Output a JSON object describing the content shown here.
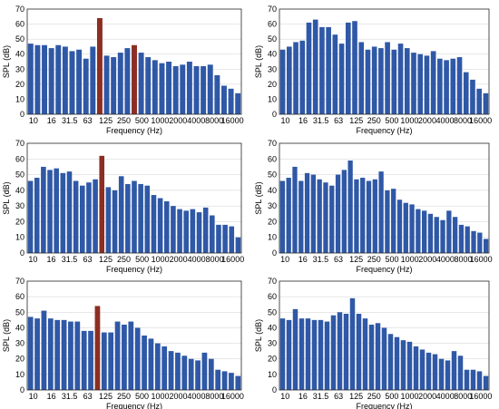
{
  "chart_data": [
    {
      "type": "bar",
      "xlabel": "Frequency (Hz)",
      "ylabel": "SPL (dB)",
      "ylim": [
        0,
        70
      ],
      "yticks": [
        0,
        10,
        20,
        30,
        40,
        50,
        60,
        70
      ],
      "xticklabels": [
        "10",
        "16",
        "31.5",
        "63",
        "125",
        "250",
        "500",
        "1000",
        "2000",
        "4000",
        "8000",
        "16000"
      ],
      "grid": true,
      "values": [
        47,
        46,
        46,
        44,
        46,
        45,
        42,
        43,
        37,
        45,
        64,
        39,
        38,
        41,
        44,
        46,
        41,
        38,
        36,
        34,
        35,
        32,
        33,
        35,
        32,
        32,
        33,
        26,
        19,
        17,
        14
      ],
      "highlight_indices": [
        10,
        15
      ]
    },
    {
      "type": "bar",
      "xlabel": "Frequency (Hz)",
      "ylabel": "SPL (dB)",
      "ylim": [
        0,
        70
      ],
      "yticks": [
        0,
        10,
        20,
        30,
        40,
        50,
        60,
        70
      ],
      "xticklabels": [
        "10",
        "16",
        "31.5",
        "63",
        "125",
        "250",
        "500",
        "1000",
        "2000",
        "4000",
        "8000",
        "16000"
      ],
      "grid": true,
      "values": [
        43,
        45,
        48,
        49,
        61,
        63,
        58,
        58,
        53,
        47,
        61,
        62,
        48,
        43,
        45,
        44,
        48,
        43,
        47,
        44,
        41,
        40,
        39,
        42,
        37,
        36,
        37,
        38,
        28,
        23,
        17,
        14
      ],
      "highlight_indices": []
    },
    {
      "type": "bar",
      "xlabel": "Frequency (Hz)",
      "ylabel": "SPL (dB)",
      "ylim": [
        0,
        70
      ],
      "yticks": [
        0,
        10,
        20,
        30,
        40,
        50,
        60,
        70
      ],
      "xticklabels": [
        "10",
        "16",
        "31.5",
        "63",
        "125",
        "250",
        "500",
        "1000",
        "2000",
        "4000",
        "8000",
        "16000"
      ],
      "grid": true,
      "values": [
        46,
        48,
        55,
        53,
        54,
        51,
        52,
        46,
        43,
        45,
        47,
        62,
        42,
        40,
        49,
        44,
        46,
        44,
        43,
        37,
        35,
        33,
        30,
        28,
        27,
        28,
        26,
        29,
        24,
        18,
        18,
        17,
        10
      ],
      "highlight_indices": [
        11
      ]
    },
    {
      "type": "bar",
      "xlabel": "Frequency (Hz)",
      "ylabel": "SPL (dB)",
      "ylim": [
        0,
        70
      ],
      "yticks": [
        0,
        10,
        20,
        30,
        40,
        50,
        60,
        70
      ],
      "xticklabels": [
        "10",
        "16",
        "31.5",
        "63",
        "125",
        "250",
        "500",
        "1000",
        "2000",
        "4000",
        "8000",
        "16000"
      ],
      "grid": true,
      "values": [
        46,
        48,
        55,
        46,
        51,
        50,
        47,
        45,
        43,
        50,
        53,
        59,
        47,
        48,
        46,
        47,
        52,
        40,
        41,
        34,
        32,
        31,
        28,
        27,
        25,
        23,
        21,
        27,
        23,
        18,
        17,
        14,
        13,
        9
      ],
      "highlight_indices": []
    },
    {
      "type": "bar",
      "xlabel": "Frequency (Hz)",
      "ylabel": "SPL (dB)",
      "ylim": [
        0,
        70
      ],
      "yticks": [
        0,
        10,
        20,
        30,
        40,
        50,
        60,
        70
      ],
      "xticklabels": [
        "10",
        "16",
        "31.5",
        "63",
        "125",
        "250",
        "500",
        "1000",
        "2000",
        "4000",
        "8000",
        "16000"
      ],
      "grid": true,
      "values": [
        47,
        46,
        51,
        46,
        45,
        45,
        44,
        44,
        38,
        38,
        54,
        37,
        37,
        44,
        42,
        44,
        40,
        35,
        33,
        30,
        28,
        25,
        24,
        22,
        20,
        19,
        24,
        20,
        13,
        12,
        11,
        9
      ],
      "highlight_indices": [
        10
      ]
    },
    {
      "type": "bar",
      "xlabel": "Frequency (Hz)",
      "ylabel": "SPL (dB)",
      "ylim": [
        0,
        70
      ],
      "yticks": [
        0,
        10,
        20,
        30,
        40,
        50,
        60,
        70
      ],
      "xticklabels": [
        "10",
        "16",
        "31.5",
        "63",
        "125",
        "250",
        "500",
        "1000",
        "2000",
        "4000",
        "8000",
        "16000"
      ],
      "grid": true,
      "values": [
        46,
        45,
        52,
        46,
        46,
        45,
        45,
        44,
        48,
        50,
        49,
        59,
        49,
        46,
        42,
        43,
        40,
        36,
        34,
        32,
        31,
        28,
        26,
        24,
        23,
        20,
        19,
        25,
        22,
        13,
        13,
        12,
        9
      ],
      "highlight_indices": []
    }
  ],
  "colors": {
    "bar": "#2f58a6",
    "highlight": "#8c2e22",
    "frame": "#262626",
    "grid": "#d9d9d9"
  }
}
